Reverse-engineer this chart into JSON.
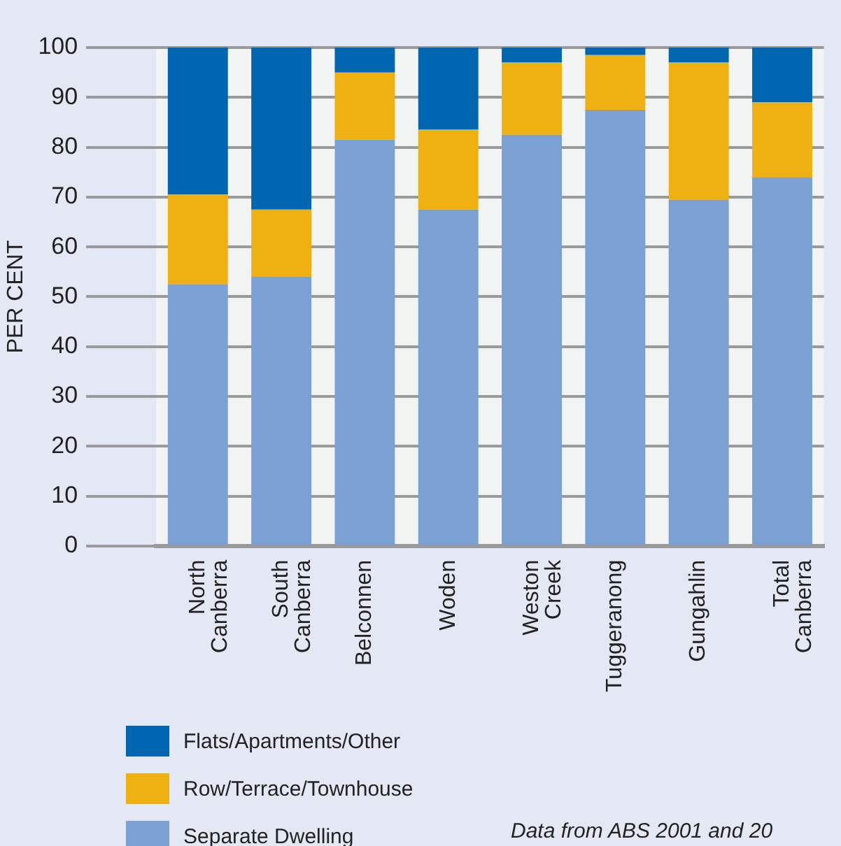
{
  "chart_data": {
    "type": "bar",
    "stacked": true,
    "ylabel": "PER CENT",
    "categories": [
      "North Canberra",
      "South Canberra",
      "Belconnen",
      "Woden",
      "Weston Creek",
      "Tuggeranong",
      "Gungahlin",
      "Total Canberra"
    ],
    "series": [
      {
        "name": "Separate Dwelling",
        "color": "#7ba0d4",
        "values": [
          52.5,
          54,
          81.5,
          67.5,
          82.5,
          87.5,
          69.5,
          74
        ]
      },
      {
        "name": "Row/Terrace/Townhouse",
        "color": "#eeb111",
        "values": [
          18,
          13.5,
          13.5,
          16,
          14.5,
          11,
          27.5,
          15
        ]
      },
      {
        "name": "Flats/Apartments/Other",
        "color": "#0066b1",
        "values": [
          29.5,
          32.5,
          5,
          16.5,
          3,
          1.5,
          3,
          11
        ]
      }
    ],
    "ylim": [
      0,
      100
    ],
    "yticks": [
      0,
      10,
      20,
      30,
      40,
      50,
      60,
      70,
      80,
      90,
      100
    ],
    "grid": "y",
    "legend": "bottom left",
    "annotations": [
      "Data from ABS 2001 and 20"
    ]
  }
}
